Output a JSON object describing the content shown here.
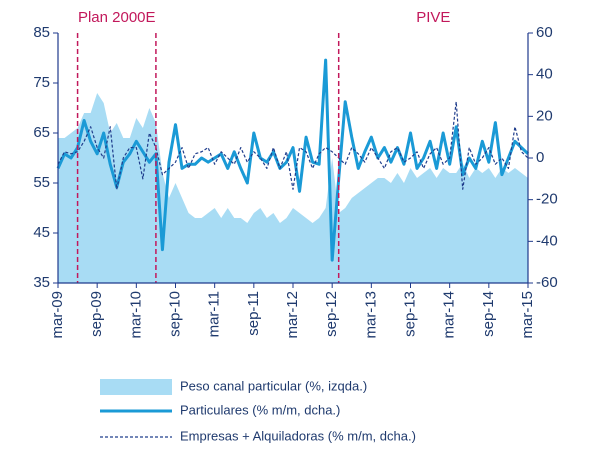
{
  "chart_data": {
    "type": "combo",
    "categories": [
      "mar-09",
      null,
      null,
      null,
      null,
      null,
      "sep-09",
      null,
      null,
      null,
      null,
      null,
      "mar-10",
      null,
      null,
      null,
      null,
      null,
      "sep-10",
      null,
      null,
      null,
      null,
      null,
      "mar-11",
      null,
      null,
      null,
      null,
      null,
      "sep-11",
      null,
      null,
      null,
      null,
      null,
      "mar-12",
      null,
      null,
      null,
      null,
      null,
      "sep-12",
      null,
      null,
      null,
      null,
      null,
      "mar-13",
      null,
      null,
      null,
      null,
      null,
      "sep-13",
      null,
      null,
      null,
      null,
      null,
      "mar-14",
      null,
      null,
      null,
      null,
      null,
      "sep-14",
      null,
      null,
      null,
      null,
      null,
      "mar-15"
    ],
    "series": [
      {
        "name": "Peso canal particular (%, izqda.)",
        "kind": "area",
        "color": "#a8dcf4",
        "axis": "y",
        "values": [
          64,
          64,
          65,
          66,
          69,
          69,
          73,
          71,
          65,
          67,
          64,
          64,
          68,
          66,
          70,
          67,
          57,
          52,
          55,
          52,
          49,
          48,
          48,
          49,
          50,
          48,
          50,
          48,
          48,
          47,
          49,
          50,
          48,
          49,
          47,
          48,
          50,
          49,
          48,
          47,
          48,
          50,
          60,
          49,
          50,
          52,
          53,
          54,
          55,
          56,
          56,
          55,
          57,
          55,
          58,
          56,
          57,
          58,
          56,
          58,
          57,
          57,
          59,
          56,
          58,
          57,
          58,
          56,
          58,
          57,
          58,
          57,
          56
        ]
      },
      {
        "name": "Particulares (% m/m, dcha.)",
        "kind": "line",
        "color": "#1a9ad6",
        "axis": "y2",
        "values": [
          -5,
          2,
          0,
          5,
          18,
          8,
          2,
          12,
          -3,
          -14,
          -2,
          2,
          8,
          3,
          -2,
          2,
          -44,
          -2,
          16,
          -5,
          -3,
          -3,
          0,
          -2,
          0,
          2,
          -5,
          3,
          -5,
          -12,
          12,
          0,
          -2,
          3,
          -5,
          -2,
          5,
          -16,
          10,
          -2,
          -3,
          47,
          -49,
          -10,
          27,
          10,
          -5,
          3,
          10,
          0,
          5,
          -2,
          5,
          -3,
          12,
          -5,
          0,
          8,
          -5,
          12,
          -3,
          15,
          -8,
          0,
          -5,
          8,
          -2,
          17,
          -8,
          0,
          8,
          5,
          2
        ]
      },
      {
        "name": "Empresas + Alquiladoras (% m/m, dcha.)",
        "kind": "dashed",
        "color": "#1f3d8c",
        "axis": "y2",
        "values": [
          -3,
          3,
          2,
          3,
          8,
          15,
          5,
          0,
          15,
          -15,
          0,
          5,
          5,
          -10,
          12,
          5,
          -8,
          -5,
          -2,
          5,
          -5,
          2,
          3,
          5,
          -3,
          3,
          0,
          -3,
          5,
          -2,
          3,
          0,
          -5,
          5,
          -5,
          3,
          -15,
          5,
          3,
          -5,
          2,
          5,
          3,
          0,
          -3,
          5,
          2,
          -2,
          5,
          0,
          -5,
          3,
          5,
          -2,
          0,
          3,
          -5,
          2,
          5,
          -3,
          0,
          27,
          -15,
          5,
          -3,
          0,
          5,
          -3,
          0,
          -5,
          15,
          3,
          0
        ]
      }
    ],
    "events": [
      {
        "label": "Plan 2000E",
        "start": 3,
        "end": 15
      },
      {
        "label": "PIVE",
        "start": 43
      }
    ],
    "ylim": [
      35,
      85
    ],
    "yticks": [
      35,
      45,
      55,
      65,
      75,
      85
    ],
    "y2lim": [
      -60,
      60
    ],
    "y2ticks": [
      -60,
      -40,
      -20,
      0,
      20,
      40,
      60
    ]
  }
}
